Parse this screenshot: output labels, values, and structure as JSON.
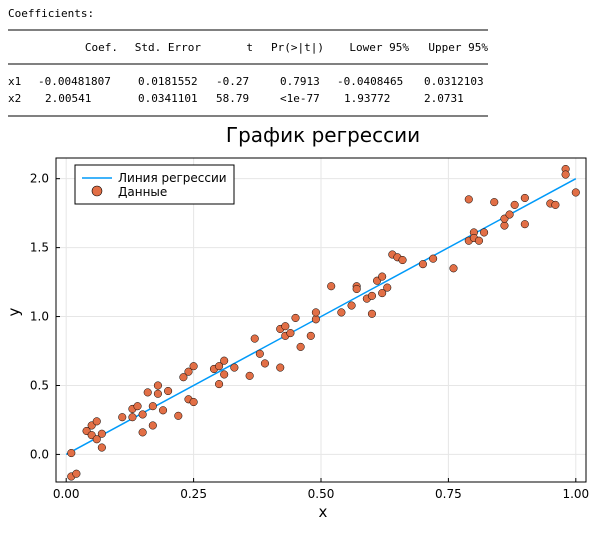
{
  "coefficients": {
    "heading": "Coefficients:",
    "columns": [
      "Coef.",
      "Std. Error",
      "t",
      "Pr(>|t|)",
      "Lower 95%",
      "Upper 95%"
    ],
    "rows": [
      {
        "name": "x1",
        "cells": [
          "-0.00481807",
          "0.0181552",
          "-0.27",
          "0.7913",
          "-0.0408465",
          "0.0312103"
        ]
      },
      {
        "name": "x2",
        "cells": [
          "2.00541",
          "0.0341101",
          "58.79",
          "<1e-77",
          "1.93772",
          "2.0731"
        ]
      }
    ]
  },
  "chart_data": {
    "type": "scatter",
    "title": "График регрессии",
    "xlabel": "x",
    "ylabel": "y",
    "xlim": [
      -0.02,
      1.02
    ],
    "ylim": [
      -0.2,
      2.15
    ],
    "xticks": [
      0.0,
      0.25,
      0.5,
      0.75,
      1.0
    ],
    "xtick_labels": [
      "0.00",
      "0.25",
      "0.50",
      "0.75",
      "1.00"
    ],
    "yticks": [
      0.0,
      0.5,
      1.0,
      1.5,
      2.0
    ],
    "ytick_labels": [
      "0.0",
      "0.5",
      "1.0",
      "1.5",
      "2.0"
    ],
    "grid": true,
    "legend_position": "top-left",
    "series": [
      {
        "name": "Линия регрессии",
        "kind": "line",
        "color": "#009af9",
        "x": [
          0.0,
          1.0
        ],
        "y": [
          0.0,
          2.0
        ]
      },
      {
        "name": "Данные",
        "kind": "scatter",
        "color": "#e26f46",
        "x": [
          0.01,
          0.01,
          0.02,
          0.04,
          0.05,
          0.05,
          0.06,
          0.06,
          0.07,
          0.07,
          0.11,
          0.13,
          0.13,
          0.14,
          0.15,
          0.15,
          0.16,
          0.17,
          0.17,
          0.18,
          0.18,
          0.19,
          0.2,
          0.22,
          0.23,
          0.24,
          0.24,
          0.25,
          0.25,
          0.29,
          0.3,
          0.3,
          0.31,
          0.31,
          0.33,
          0.36,
          0.37,
          0.38,
          0.39,
          0.42,
          0.42,
          0.43,
          0.43,
          0.44,
          0.45,
          0.46,
          0.48,
          0.49,
          0.49,
          0.52,
          0.54,
          0.56,
          0.57,
          0.57,
          0.59,
          0.6,
          0.6,
          0.61,
          0.62,
          0.62,
          0.63,
          0.64,
          0.65,
          0.66,
          0.7,
          0.72,
          0.76,
          0.79,
          0.79,
          0.8,
          0.8,
          0.81,
          0.82,
          0.84,
          0.86,
          0.86,
          0.87,
          0.88,
          0.9,
          0.9,
          0.95,
          0.96,
          0.98,
          0.98,
          1.0
        ],
        "y": [
          -0.16,
          0.01,
          -0.14,
          0.17,
          0.14,
          0.21,
          0.24,
          0.11,
          0.05,
          0.15,
          0.27,
          0.33,
          0.27,
          0.35,
          0.16,
          0.29,
          0.45,
          0.21,
          0.35,
          0.44,
          0.5,
          0.32,
          0.46,
          0.28,
          0.56,
          0.4,
          0.6,
          0.64,
          0.38,
          0.62,
          0.64,
          0.51,
          0.58,
          0.68,
          0.63,
          0.57,
          0.84,
          0.73,
          0.66,
          0.63,
          0.91,
          0.93,
          0.86,
          0.88,
          0.99,
          0.78,
          0.86,
          0.98,
          1.03,
          1.22,
          1.03,
          1.08,
          1.22,
          1.2,
          1.13,
          1.15,
          1.02,
          1.26,
          1.17,
          1.29,
          1.21,
          1.45,
          1.43,
          1.41,
          1.38,
          1.42,
          1.35,
          1.55,
          1.85,
          1.61,
          1.57,
          1.55,
          1.61,
          1.83,
          1.66,
          1.71,
          1.74,
          1.81,
          1.67,
          1.86,
          1.82,
          1.81,
          2.07,
          2.03,
          1.9
        ]
      }
    ]
  }
}
